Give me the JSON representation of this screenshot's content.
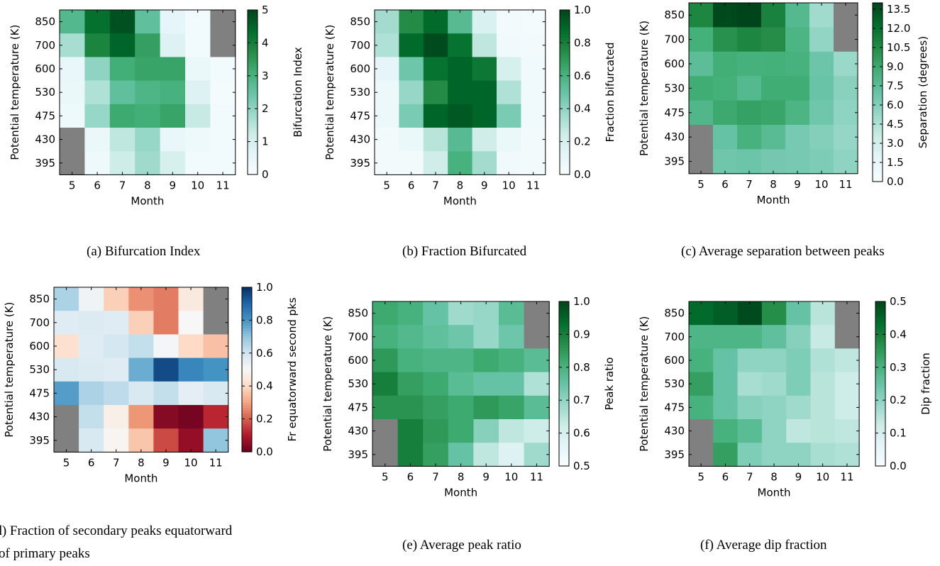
{
  "figure": {
    "panels": [
      {
        "caption": "(a) Bifurcation Index"
      },
      {
        "caption": "(b) Fraction Bifurcated"
      },
      {
        "caption": "(c) Average separation between peaks"
      },
      {
        "caption_line1": "(d) Fraction of secondary peaks equatorward",
        "caption_line2": "of primary peaks"
      },
      {
        "caption": "(e) Average peak ratio"
      },
      {
        "caption": "(f) Average dip fraction"
      }
    ]
  },
  "colors": {
    "missing": "#808080",
    "greens_light": "#f7fcfd",
    "greens_dark": "#00441b",
    "rdbu_red": "#67001f",
    "rdbu_white": "#f7f7f7",
    "rdbu_blue": "#053061"
  },
  "chart_data": [
    {
      "type": "heatmap",
      "colormap": "greens",
      "xlabel": "Month",
      "ylabel": "Potential temperature (K)",
      "x": [
        "5",
        "6",
        "7",
        "8",
        "9",
        "10",
        "11"
      ],
      "y": [
        "850",
        "700",
        "600",
        "530",
        "475",
        "430",
        "395"
      ],
      "colorbar_label": "Bifurcation Index",
      "vmin": 0,
      "vmax": 5,
      "colorbar_ticks": [
        "0",
        "1",
        "2",
        "3",
        "4",
        "5"
      ],
      "values": [
        [
          2.8,
          4.3,
          4.8,
          2.6,
          0.6,
          0.2,
          null
        ],
        [
          1.7,
          3.9,
          4.5,
          3.4,
          0.8,
          0.2,
          null
        ],
        [
          0.5,
          2.0,
          3.1,
          3.3,
          3.3,
          0.4,
          0.2
        ],
        [
          0.4,
          1.6,
          2.6,
          2.9,
          3.0,
          0.8,
          0.1
        ],
        [
          0.3,
          1.9,
          3.2,
          3.1,
          3.3,
          1.3,
          0.2
        ],
        [
          null,
          0.4,
          1.4,
          1.9,
          0.5,
          0.3,
          0.2
        ],
        [
          null,
          0.3,
          1.2,
          1.8,
          1.0,
          0.2,
          0.2
        ]
      ]
    },
    {
      "type": "heatmap",
      "colormap": "greens",
      "xlabel": "Month",
      "ylabel": "Potential temperature (K)",
      "x": [
        "5",
        "6",
        "7",
        "8",
        "9",
        "10",
        "11"
      ],
      "y": [
        "850",
        "700",
        "600",
        "530",
        "475",
        "430",
        "395"
      ],
      "colorbar_label": "Fraction bifurcated",
      "vmin": 0.0,
      "vmax": 1.0,
      "colorbar_ticks": [
        "0.0",
        "0.2",
        "0.4",
        "0.6",
        "0.8",
        "1.0"
      ],
      "values": [
        [
          0.35,
          0.75,
          0.88,
          0.55,
          0.18,
          0.03,
          0.02
        ],
        [
          0.32,
          0.88,
          0.98,
          0.85,
          0.28,
          0.05,
          0.03
        ],
        [
          0.12,
          0.48,
          0.85,
          0.9,
          0.83,
          0.2,
          0.05
        ],
        [
          0.07,
          0.38,
          0.75,
          0.9,
          0.9,
          0.32,
          0.05
        ],
        [
          0.07,
          0.45,
          0.9,
          0.94,
          0.9,
          0.45,
          0.05
        ],
        [
          0.03,
          0.08,
          0.3,
          0.55,
          0.23,
          0.08,
          0.03
        ],
        [
          0.03,
          0.03,
          0.23,
          0.6,
          0.35,
          0.05,
          0.03
        ]
      ]
    },
    {
      "type": "heatmap",
      "colormap": "greens",
      "xlabel": "Month",
      "ylabel": "Separation (degrees)",
      "ylabel_left": "Potential temperature (K)",
      "x": [
        "5",
        "6",
        "7",
        "8",
        "9",
        "10",
        "11"
      ],
      "y": [
        "850",
        "700",
        "600",
        "530",
        "475",
        "430",
        "395"
      ],
      "colorbar_label": "Separation (degrees)",
      "vmin": 0.0,
      "vmax": 14.0,
      "colorbar_ticks": [
        "0.0",
        "1.5",
        "3.0",
        "4.5",
        "6.0",
        "7.5",
        "9.0",
        "10.5",
        "12.0",
        "13.5"
      ],
      "values": [
        [
          10.8,
          13.8,
          14.0,
          11.0,
          7.8,
          5.0,
          null
        ],
        [
          8.6,
          10.2,
          10.8,
          10.4,
          8.2,
          5.5,
          null
        ],
        [
          7.4,
          8.7,
          8.5,
          8.6,
          8.4,
          6.8,
          5.2
        ],
        [
          8.8,
          8.6,
          7.8,
          8.8,
          8.8,
          6.9,
          5.8
        ],
        [
          8.0,
          9.0,
          9.4,
          9.2,
          8.2,
          6.7,
          5.6
        ],
        [
          null,
          7.0,
          8.4,
          7.6,
          6.4,
          6.0,
          5.4
        ],
        [
          null,
          6.7,
          6.8,
          6.5,
          6.4,
          6.2,
          5.6
        ]
      ]
    },
    {
      "type": "heatmap",
      "colormap": "rdbu",
      "xlabel": "Month",
      "ylabel": "Potential temperature (K)",
      "x": [
        "5",
        "6",
        "7",
        "8",
        "9",
        "10",
        "11"
      ],
      "y": [
        "850",
        "700",
        "600",
        "530",
        "475",
        "430",
        "395"
      ],
      "colorbar_label": "Fr equatorward second pks",
      "vmin": 0.0,
      "vmax": 1.0,
      "colorbar_ticks": [
        "0.0",
        "0.2",
        "0.4",
        "0.6",
        "0.8",
        "1.0"
      ],
      "values": [
        [
          0.66,
          0.52,
          0.38,
          0.27,
          0.24,
          0.45,
          null
        ],
        [
          0.56,
          0.57,
          0.56,
          0.38,
          0.24,
          0.5,
          null
        ],
        [
          0.42,
          0.56,
          0.59,
          0.62,
          0.51,
          0.4,
          0.35
        ],
        [
          0.58,
          0.57,
          0.56,
          0.75,
          0.95,
          0.83,
          0.8
        ],
        [
          0.78,
          0.66,
          0.63,
          0.58,
          0.62,
          0.55,
          0.58
        ],
        [
          null,
          0.62,
          0.47,
          0.28,
          0.04,
          0.02,
          0.12
        ],
        [
          null,
          0.58,
          0.49,
          0.36,
          0.17,
          0.06,
          0.7
        ]
      ]
    },
    {
      "type": "heatmap",
      "colormap": "greens",
      "xlabel": "Month",
      "ylabel": "Potential temperature (K)",
      "x": [
        "5",
        "6",
        "7",
        "8",
        "9",
        "10",
        "11"
      ],
      "y": [
        "850",
        "700",
        "600",
        "530",
        "475",
        "430",
        "395"
      ],
      "colorbar_label": "Peak ratio",
      "vmin": 0.5,
      "vmax": 1.0,
      "colorbar_ticks": [
        "0.5",
        "0.6",
        "0.7",
        "0.8",
        "0.9",
        "1.0"
      ],
      "values": [
        [
          0.82,
          0.8,
          0.75,
          0.68,
          0.69,
          0.77,
          null
        ],
        [
          0.8,
          0.78,
          0.76,
          0.74,
          0.69,
          0.74,
          null
        ],
        [
          0.85,
          0.8,
          0.79,
          0.79,
          0.82,
          0.8,
          0.77
        ],
        [
          0.9,
          0.84,
          0.82,
          0.77,
          0.75,
          0.75,
          0.66
        ],
        [
          0.86,
          0.86,
          0.84,
          0.82,
          0.85,
          0.83,
          0.77
        ],
        [
          null,
          0.9,
          0.85,
          0.82,
          0.71,
          0.64,
          0.62
        ],
        [
          null,
          0.9,
          0.84,
          0.75,
          0.64,
          0.58,
          0.68
        ]
      ]
    },
    {
      "type": "heatmap",
      "colormap": "greens",
      "xlabel": "Month",
      "ylabel": "Dip fraction",
      "ylabel_left": "Potential temperature (K)",
      "x": [
        "5",
        "6",
        "7",
        "8",
        "9",
        "10",
        "11"
      ],
      "y": [
        "850",
        "700",
        "600",
        "530",
        "475",
        "430",
        "395"
      ],
      "colorbar_label": "Dip fraction",
      "vmin": 0.0,
      "vmax": 0.5,
      "colorbar_ticks": [
        "0.0",
        "0.1",
        "0.2",
        "0.3",
        "0.4",
        "0.5"
      ],
      "values": [
        [
          0.44,
          0.46,
          0.49,
          0.37,
          0.25,
          0.15,
          null
        ],
        [
          0.29,
          0.29,
          0.29,
          0.26,
          0.21,
          0.13,
          null
        ],
        [
          0.3,
          0.25,
          0.2,
          0.2,
          0.22,
          0.16,
          0.14
        ],
        [
          0.34,
          0.25,
          0.17,
          0.18,
          0.22,
          0.15,
          0.12
        ],
        [
          0.3,
          0.25,
          0.21,
          0.2,
          0.18,
          0.15,
          0.12
        ],
        [
          null,
          0.3,
          0.27,
          0.2,
          0.14,
          0.15,
          0.14
        ],
        [
          null,
          0.34,
          0.22,
          0.2,
          0.2,
          0.17,
          0.16
        ]
      ]
    }
  ]
}
